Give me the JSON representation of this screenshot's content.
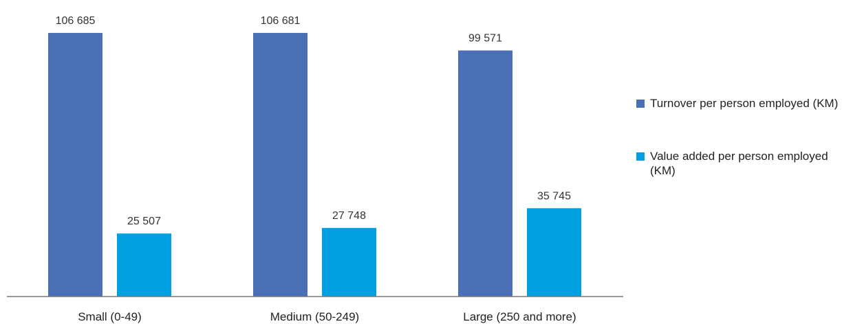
{
  "chart_data": {
    "type": "bar",
    "categories": [
      "Small (0-49)",
      "Medium (50-249)",
      "Large (250 and more)"
    ],
    "series": [
      {
        "name": "Turnover per person employed (KM)",
        "values": [
          106685,
          106681,
          99571
        ],
        "labels": [
          "106 685",
          "106 681",
          "99 571"
        ],
        "color": "#4a6fb5"
      },
      {
        "name": "Value added per person employed (KM)",
        "values": [
          25507,
          27748,
          35745
        ],
        "labels": [
          "25 507",
          "27 748",
          "35 745"
        ],
        "color": "#00a0e0"
      }
    ],
    "ylim": [
      0,
      120000
    ],
    "grid": false,
    "legend_position": "right"
  }
}
